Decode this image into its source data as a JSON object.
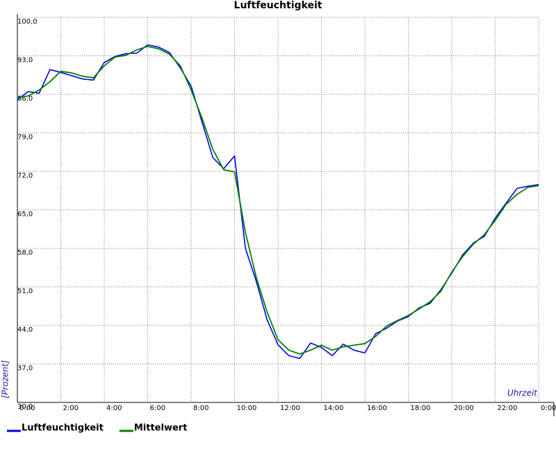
{
  "chart_data": {
    "type": "line",
    "title": "Luftfeuchtigkeit",
    "x_label": "Uhrzeit",
    "y_label": "[Prozent]",
    "x": [
      0,
      0.5,
      1,
      1.5,
      2,
      2.5,
      3,
      3.5,
      4,
      4.5,
      5,
      5.5,
      6,
      6.5,
      7,
      7.5,
      8,
      8.5,
      9,
      9.5,
      10,
      10.5,
      11,
      11.5,
      12,
      12.5,
      13,
      13.5,
      14,
      14.5,
      15,
      15.5,
      16,
      16.5,
      17,
      17.5,
      18,
      18.5,
      19,
      19.5,
      20,
      20.5,
      21,
      21.5,
      22,
      22.5,
      23,
      23.5,
      24
    ],
    "series": [
      {
        "name": "Luftfeuchtigkeit",
        "color": "#0000e6",
        "values": [
          85.0,
          86.5,
          86.2,
          90.5,
          90.0,
          89.4,
          88.8,
          88.6,
          91.8,
          92.9,
          93.4,
          93.5,
          95.0,
          94.6,
          93.6,
          90.8,
          87.5,
          81.0,
          74.5,
          72.5,
          74.8,
          58.0,
          52.0,
          45.0,
          40.5,
          38.5,
          38.0,
          40.8,
          40.0,
          38.5,
          40.6,
          39.5,
          39.0,
          42.5,
          43.5,
          44.8,
          45.6,
          47.2,
          48.0,
          50.5,
          53.5,
          56.8,
          59.0,
          60.2,
          63.5,
          66.2,
          68.9,
          69.3,
          69.6
        ]
      },
      {
        "name": "Mittelwert",
        "color": "#008000",
        "values": [
          85.5,
          85.7,
          86.8,
          88.3,
          90.2,
          89.9,
          89.3,
          89.0,
          91.2,
          92.8,
          93.1,
          94.1,
          94.7,
          94.3,
          93.3,
          91.2,
          86.8,
          81.7,
          76.0,
          72.3,
          71.9,
          60.9,
          52.7,
          46.4,
          41.4,
          39.5,
          38.8,
          39.5,
          40.4,
          39.5,
          40.1,
          40.4,
          40.7,
          42.0,
          43.9,
          44.9,
          45.8,
          47.0,
          48.3,
          50.2,
          53.7,
          56.5,
          58.8,
          60.5,
          63.1,
          66.0,
          67.8,
          69.1,
          69.4
        ]
      }
    ],
    "xlim": [
      0,
      24
    ],
    "xticks": [
      {
        "value": 0,
        "label": "0:00"
      },
      {
        "value": 2,
        "label": "2:00"
      },
      {
        "value": 4,
        "label": "4:00"
      },
      {
        "value": 6,
        "label": "6:00"
      },
      {
        "value": 8,
        "label": "8:00"
      },
      {
        "value": 10,
        "label": "10:00"
      },
      {
        "value": 12,
        "label": "12:00"
      },
      {
        "value": 14,
        "label": "14:00"
      },
      {
        "value": 16,
        "label": "16:00"
      },
      {
        "value": 18,
        "label": "18:00"
      },
      {
        "value": 20,
        "label": "20:00"
      },
      {
        "value": 22,
        "label": "22:00"
      },
      {
        "value": 24,
        "label": "0:00"
      }
    ],
    "ylim": [
      30,
      100
    ],
    "yticks": [
      {
        "value": 30,
        "label": "30,0"
      },
      {
        "value": 37,
        "label": "37,0"
      },
      {
        "value": 44,
        "label": "44,0"
      },
      {
        "value": 51,
        "label": "51,0"
      },
      {
        "value": 58,
        "label": "58,0"
      },
      {
        "value": 65,
        "label": "65,0"
      },
      {
        "value": 72,
        "label": "72,0"
      },
      {
        "value": 79,
        "label": "79,0"
      },
      {
        "value": 86,
        "label": "86,0"
      },
      {
        "value": 93,
        "label": "93,0"
      },
      {
        "value": 100,
        "label": "100,0"
      }
    ],
    "grid": true,
    "legend": "bottom"
  }
}
